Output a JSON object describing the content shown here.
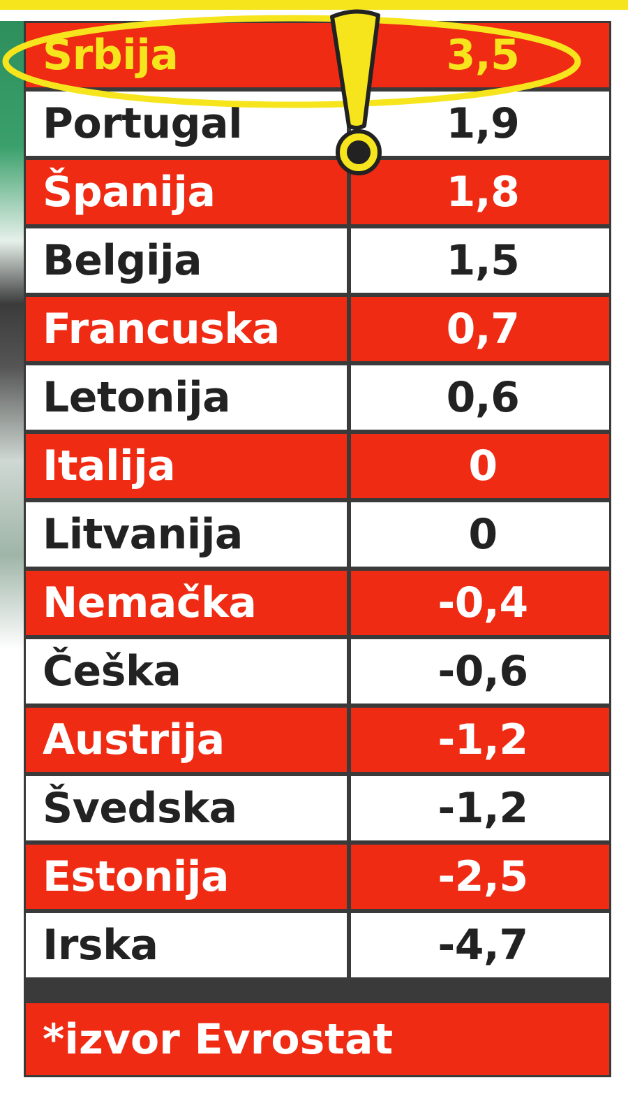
{
  "chart_data": {
    "type": "table",
    "columns": [
      "country",
      "value"
    ],
    "rows": [
      {
        "country": "Srbija",
        "value": "3,5",
        "highlight": true
      },
      {
        "country": "Portugal",
        "value": "1,9"
      },
      {
        "country": "Španija",
        "value": "1,8"
      },
      {
        "country": "Belgija",
        "value": "1,5"
      },
      {
        "country": "Francuska",
        "value": "0,7"
      },
      {
        "country": "Letonija",
        "value": "0,6"
      },
      {
        "country": "Italija",
        "value": "0"
      },
      {
        "country": "Litvanija",
        "value": "0"
      },
      {
        "country": "Nemačka",
        "value": "-0,4"
      },
      {
        "country": "Češka",
        "value": "-0,6"
      },
      {
        "country": "Austrija",
        "value": "-1,2"
      },
      {
        "country": "Švedska",
        "value": "-1,2"
      },
      {
        "country": "Estonija",
        "value": "-2,5"
      },
      {
        "country": "Irska",
        "value": "-4,7"
      }
    ],
    "source": "*izvor Evrostat"
  },
  "colors": {
    "red": "#ef2b14",
    "white": "#ffffff",
    "highlight_text": "#f6e51d",
    "annotation": "#f6e51d",
    "border": "#3a3a3a"
  },
  "annotation": {
    "ellipse": "highlight-ring",
    "mark": "exclamation-icon"
  }
}
